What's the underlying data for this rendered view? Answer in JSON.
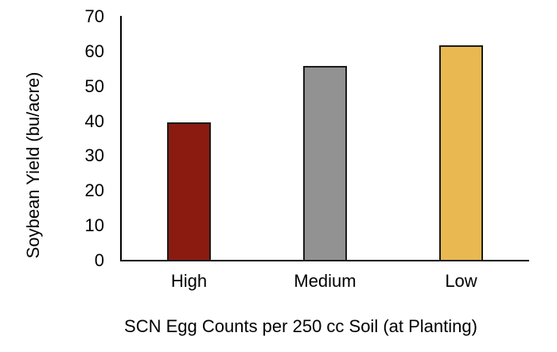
{
  "chart_data": {
    "type": "bar",
    "title": "",
    "categories": [
      "High",
      "Medium",
      "Low"
    ],
    "values": [
      40,
      56,
      62
    ],
    "series": [
      {
        "name": "Soybean Yield",
        "values": [
          40,
          56,
          62
        ]
      }
    ],
    "bar_colors": [
      "#8B1B10",
      "#929292",
      "#E9B851"
    ],
    "bar_border_color": "#1A1A1A",
    "xlabel": "SCN Egg Counts per 250 cc Soil (at Planting)",
    "ylabel": "Soybean Yield (bu/acre)",
    "ylim": [
      0,
      70
    ],
    "yticks": [
      0,
      10,
      20,
      30,
      40,
      50,
      60,
      70
    ],
    "grid": false,
    "legend": "none",
    "axis_color": "#000000",
    "text_color": "#000000",
    "background_color": "#FFFFFF"
  }
}
